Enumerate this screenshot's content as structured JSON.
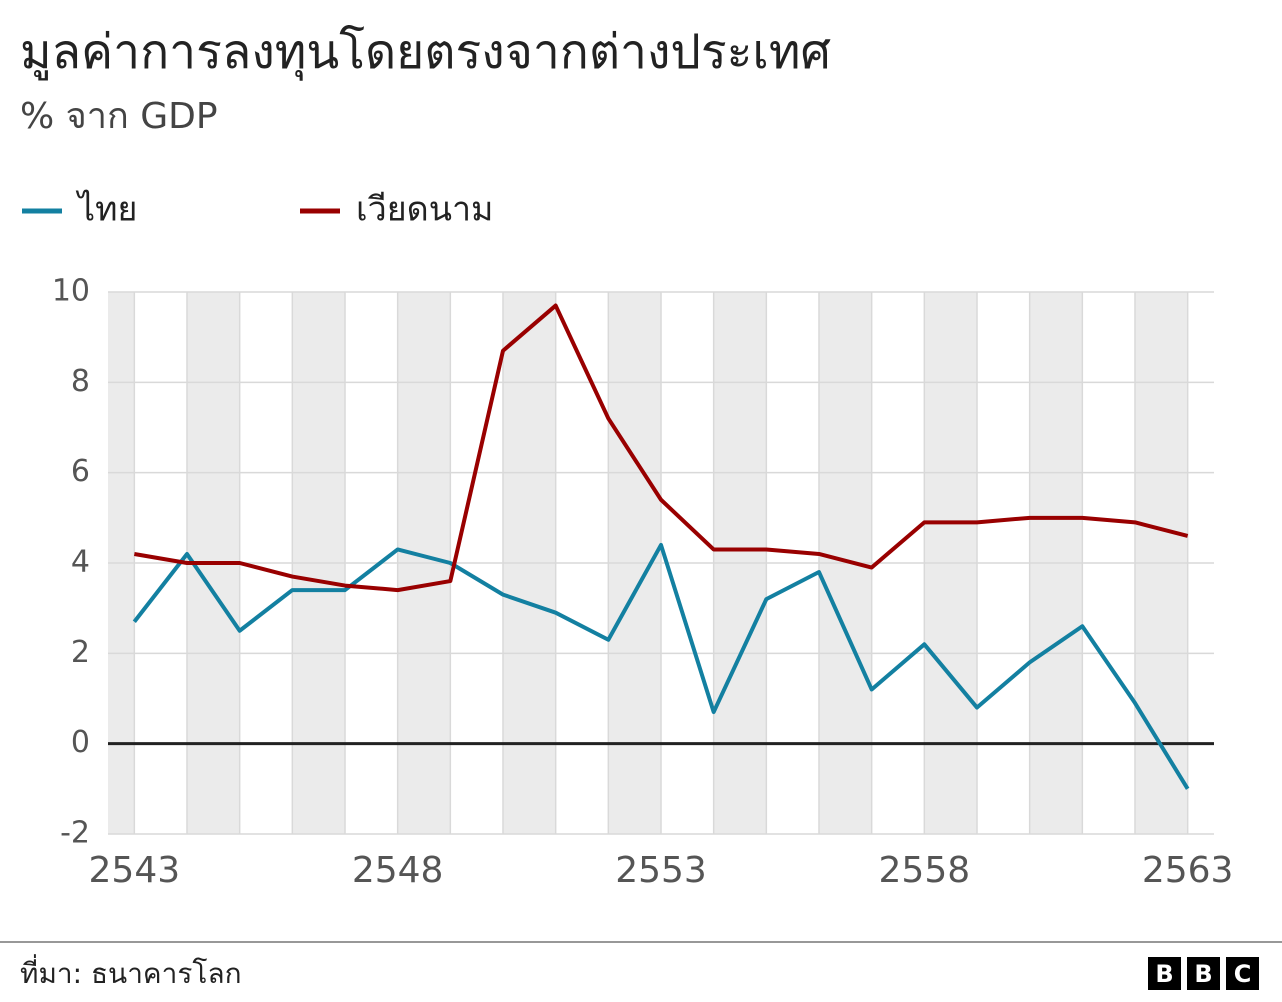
{
  "chart_data": {
    "type": "line",
    "title": "มูลค่าการลงทุนโดยตรงจากต่างประเทศ",
    "subtitle": "% จาก GDP",
    "x": [
      2543,
      2544,
      2545,
      2546,
      2547,
      2548,
      2549,
      2550,
      2551,
      2552,
      2553,
      2554,
      2555,
      2556,
      2557,
      2558,
      2559,
      2560,
      2561,
      2562,
      2563
    ],
    "xlim": [
      2542.5,
      2563.5
    ],
    "xticks": [
      2543,
      2548,
      2553,
      2558,
      2563
    ],
    "ylim": [
      -2,
      10
    ],
    "yticks": [
      -2,
      0,
      2,
      4,
      6,
      8,
      10
    ],
    "grid": true,
    "series": [
      {
        "name": "ไทย",
        "color": "#1380a1",
        "values": [
          2.7,
          4.2,
          2.5,
          3.4,
          3.4,
          4.3,
          4.0,
          3.3,
          2.9,
          2.3,
          4.4,
          0.7,
          3.2,
          3.8,
          1.2,
          2.2,
          0.8,
          1.8,
          2.6,
          0.9,
          -1.0
        ]
      },
      {
        "name": "เวียดนาม",
        "color": "#990000",
        "values": [
          4.2,
          4.0,
          4.0,
          3.7,
          3.5,
          3.4,
          3.6,
          8.7,
          9.7,
          7.2,
          5.4,
          4.3,
          4.3,
          4.2,
          3.9,
          4.9,
          4.9,
          5.0,
          5.0,
          4.9,
          4.6
        ]
      }
    ],
    "source": "ที่มา: ธนาคารโลก",
    "logo": [
      "B",
      "B",
      "C"
    ]
  }
}
